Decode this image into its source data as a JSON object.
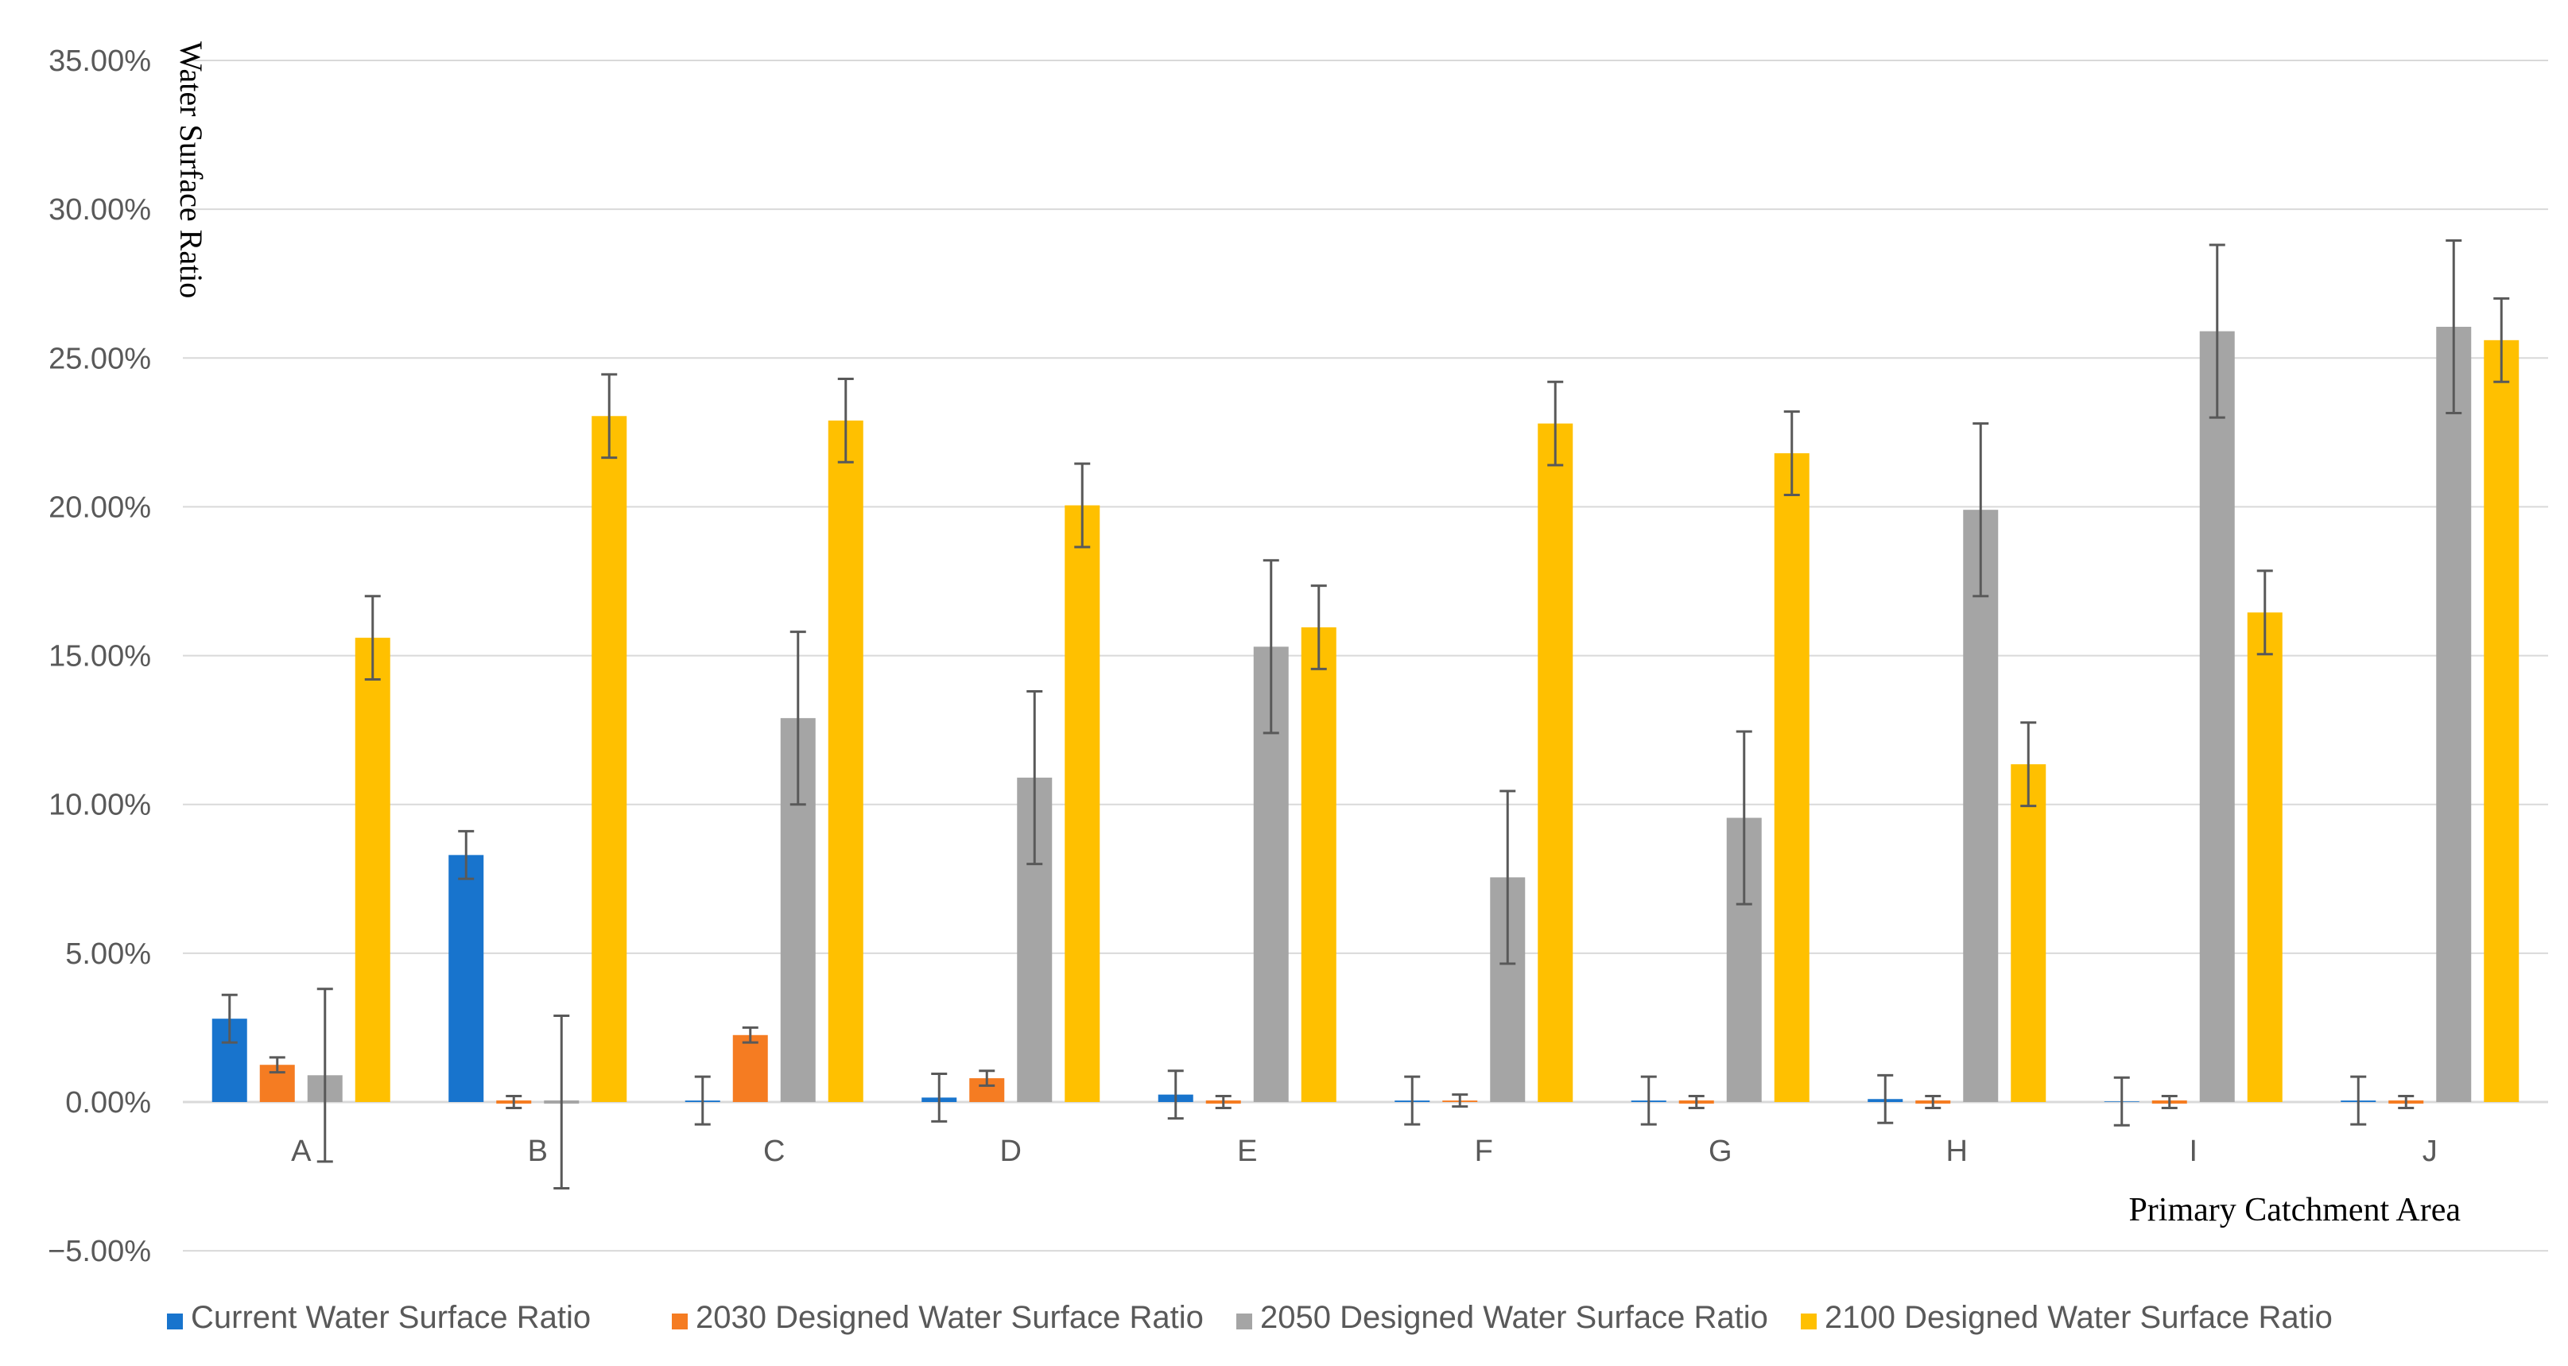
{
  "chart_data": {
    "type": "bar",
    "title": "",
    "xlabel": "Primary Catchment Area",
    "ylabel": "Water Surface Ratio",
    "ylim": [
      -5,
      35
    ],
    "yticks": [
      35,
      30,
      25,
      20,
      15,
      10,
      5,
      0,
      -5
    ],
    "ytick_labels": [
      "35.00%",
      "30.00%",
      "25.00%",
      "20.00%",
      "15.00%",
      "10.00%",
      "5.00%",
      "0.00%",
      "−5.00%"
    ],
    "grid": true,
    "legend_position": "bottom",
    "categories": [
      "A",
      "B",
      "C",
      "D",
      "E",
      "F",
      "G",
      "H",
      "I",
      "J"
    ],
    "series": [
      {
        "name": "Current Water Surface Ratio",
        "color": "#1874CD",
        "values": [
          2.8,
          8.3,
          0.05,
          0.15,
          0.25,
          0.05,
          0.05,
          0.1,
          0.02,
          0.05
        ],
        "errors": [
          0.8,
          0.8,
          0.8,
          0.8,
          0.8,
          0.8,
          0.8,
          0.8,
          0.8,
          0.8
        ]
      },
      {
        "name": "2030 Designed Water Surface Ratio",
        "color": "#F57C22",
        "values": [
          1.25,
          0.0,
          2.25,
          0.8,
          0.0,
          0.05,
          0.0,
          0.0,
          0.0,
          0.0
        ],
        "errors": [
          0.25,
          0.2,
          0.25,
          0.25,
          0.2,
          0.2,
          0.2,
          0.2,
          0.2,
          0.2
        ]
      },
      {
        "name": "2050 Designed Water Surface Ratio",
        "color": "#A5A5A5",
        "values": [
          0.9,
          0.0,
          12.9,
          10.9,
          15.3,
          7.55,
          9.55,
          19.9,
          25.9,
          26.05
        ],
        "errors": [
          2.9,
          2.9,
          2.9,
          2.9,
          2.9,
          2.9,
          2.9,
          2.9,
          2.9,
          2.9
        ]
      },
      {
        "name": "2100 Designed Water Surface Ratio",
        "color": "#FFC000",
        "values": [
          15.6,
          23.05,
          22.9,
          20.05,
          15.95,
          22.8,
          21.8,
          11.35,
          16.45,
          25.6
        ],
        "errors": [
          1.4,
          1.4,
          1.4,
          1.4,
          1.4,
          1.4,
          1.4,
          1.4,
          1.4,
          1.4
        ]
      }
    ]
  },
  "colors": {
    "grid": "#D9D9D9",
    "axis": "#D9D9D9",
    "error_bar": "#595959"
  }
}
